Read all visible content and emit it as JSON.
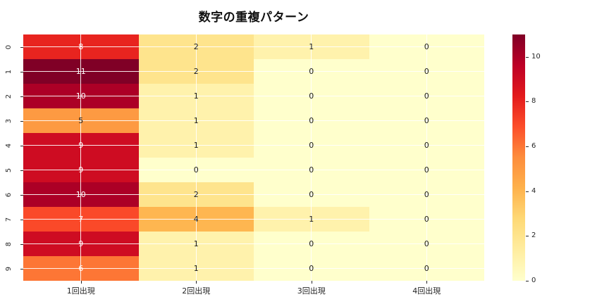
{
  "title": "数字の重複パターン",
  "chart_data": {
    "type": "heatmap",
    "title": "数字の重複パターン",
    "x_categories": [
      "1回出現",
      "2回出現",
      "3回出現",
      "4回出現"
    ],
    "y_categories": [
      "0",
      "1",
      "2",
      "3",
      "4",
      "5",
      "6",
      "7",
      "8",
      "9"
    ],
    "values": [
      [
        8,
        2,
        1,
        0
      ],
      [
        11,
        2,
        0,
        0
      ],
      [
        10,
        1,
        0,
        0
      ],
      [
        5,
        1,
        0,
        0
      ],
      [
        9,
        1,
        0,
        0
      ],
      [
        9,
        0,
        0,
        0
      ],
      [
        10,
        2,
        0,
        0
      ],
      [
        7,
        4,
        1,
        0
      ],
      [
        9,
        1,
        0,
        0
      ],
      [
        6,
        1,
        0,
        0
      ]
    ],
    "vmin": 0,
    "vmax": 11,
    "colormap": "YlOrRd",
    "colorbar_ticks": [
      0,
      2,
      4,
      6,
      8,
      10
    ],
    "grid": true,
    "annotations": true,
    "annotation_white_text_above": 5.5,
    "palette": {
      "0": "#ffffcc",
      "1": "#fff2ac",
      "2": "#fee48d",
      "3": "#fecf70",
      "4": "#feb650",
      "5": "#fd9a42",
      "6": "#fd7635",
      "7": "#fa4929",
      "8": "#e8241f",
      "9": "#ce0c22",
      "10": "#ac0026",
      "11": "#800026"
    },
    "colors": {
      "annotation_dark": "#1a1a1a",
      "annotation_light": "#ffffff",
      "gridline": "rgba(255,255,255,0.9)",
      "tick_label": "#262626"
    }
  }
}
